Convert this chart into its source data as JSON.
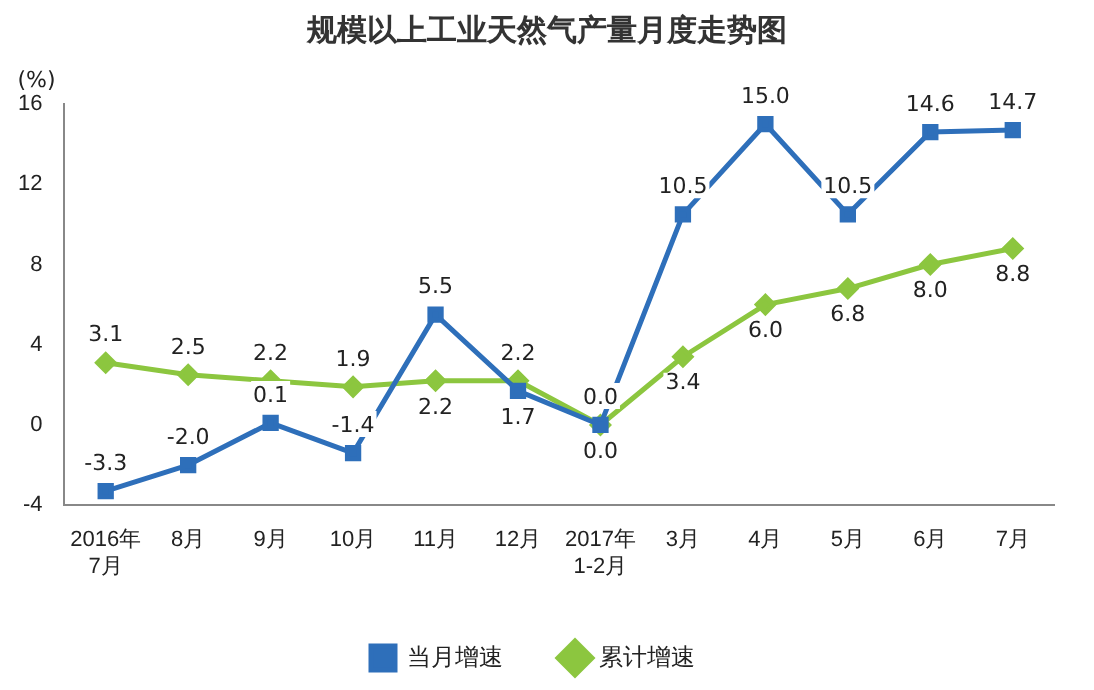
{
  "chart_data": {
    "type": "line",
    "title": "规模以上工业天然气产量月度走势图",
    "ylabel": "(%)",
    "categories": [
      "2016年\n7月",
      "8月",
      "9月",
      "10月",
      "11月",
      "12月",
      "2017年\n1-2月",
      "3月",
      "4月",
      "5月",
      "6月",
      "7月"
    ],
    "series": [
      {
        "name": "当月增速",
        "color": "#2e6fba",
        "marker": "square",
        "values": [
          -3.3,
          -2.0,
          0.1,
          -1.4,
          5.5,
          1.7,
          0.0,
          10.5,
          15.0,
          10.5,
          14.6,
          14.7
        ],
        "value_labels": [
          "-3.3",
          "-2.0",
          "0.1",
          "-1.4",
          "5.5",
          "1.7",
          "0.0",
          "10.5",
          "15.0",
          "10.5",
          "14.6",
          "14.7"
        ]
      },
      {
        "name": "累计增速",
        "color": "#8cc63f",
        "marker": "diamond",
        "values": [
          3.1,
          2.5,
          2.2,
          1.9,
          2.2,
          2.2,
          0.0,
          3.4,
          6.0,
          6.8,
          8.0,
          8.8
        ],
        "value_labels": [
          "3.1",
          "2.5",
          "2.2",
          "1.9",
          "2.2",
          "2.2",
          "0.0",
          "3.4",
          "6.0",
          "6.8",
          "8.0",
          "8.8"
        ]
      }
    ],
    "ylim": [
      -4,
      16
    ],
    "yticks": [
      -4,
      0,
      4,
      8,
      12,
      16
    ],
    "grid": false,
    "legend": "bottom"
  }
}
